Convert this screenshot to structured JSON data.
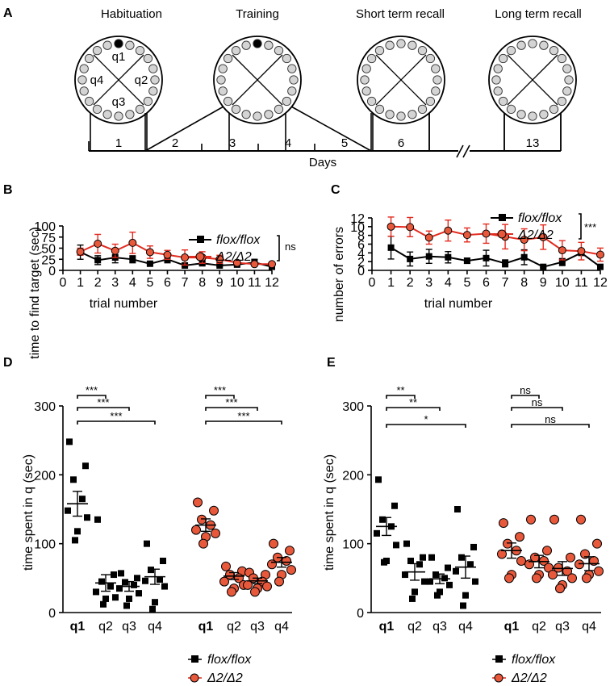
{
  "panels": {
    "A": {
      "label": "A",
      "phases": [
        "Habituation",
        "Training",
        "Short term recall",
        "Long term recall"
      ],
      "quadrants": [
        "q1",
        "q2",
        "q3",
        "q4"
      ],
      "days": [
        "1",
        "2",
        "3",
        "4",
        "5",
        "6",
        "13"
      ],
      "days_label": "Days"
    },
    "B": {
      "label": "B"
    },
    "C": {
      "label": "C"
    },
    "D": {
      "label": "D"
    },
    "E": {
      "label": "E"
    }
  },
  "chart_data": [
    {
      "id": "B",
      "type": "line",
      "xlabel": "trial number",
      "ylabel": "time to find target (sec)",
      "xlim": [
        0,
        12
      ],
      "ylim": [
        0,
        100
      ],
      "xticks": [
        0,
        1,
        2,
        3,
        4,
        5,
        6,
        7,
        8,
        9,
        10,
        11,
        12
      ],
      "yticks": [
        0,
        25,
        50,
        75,
        100
      ],
      "legend_position": "top-right",
      "significance": "ns",
      "series": [
        {
          "name": "flox/flox",
          "color": "#000000",
          "marker": "square",
          "x": [
            1,
            2,
            3,
            4,
            5,
            6,
            7,
            8,
            9,
            10,
            11,
            12
          ],
          "y": [
            41,
            23,
            29,
            25,
            15,
            25,
            11,
            16,
            11,
            13,
            18,
            8
          ],
          "err": [
            16,
            10,
            12,
            8,
            2,
            8,
            2,
            5,
            2,
            3,
            7,
            3
          ]
        },
        {
          "name": "Δ2/Δ2",
          "color": "#e32b1f",
          "marker": "circle",
          "x": [
            1,
            2,
            3,
            4,
            5,
            6,
            7,
            8,
            9,
            10,
            11,
            12
          ],
          "y": [
            42,
            60,
            44,
            62,
            41,
            35,
            29,
            29,
            25,
            17,
            14,
            14
          ],
          "err": [
            8,
            21,
            15,
            24,
            14,
            10,
            17,
            13,
            9,
            5,
            4,
            4
          ]
        }
      ]
    },
    {
      "id": "C",
      "type": "line",
      "xlabel": "trial number",
      "ylabel": "number of errors",
      "xlim": [
        0,
        12
      ],
      "ylim": [
        0,
        12
      ],
      "xticks": [
        0,
        1,
        2,
        3,
        4,
        5,
        6,
        7,
        8,
        9,
        10,
        11,
        12
      ],
      "yticks": [
        0,
        2,
        4,
        6,
        8,
        10,
        12
      ],
      "legend_position": "top-right",
      "significance": "***",
      "series": [
        {
          "name": "flox/flox",
          "color": "#000000",
          "marker": "square",
          "x": [
            1,
            2,
            3,
            4,
            5,
            6,
            7,
            8,
            9,
            10,
            11,
            12
          ],
          "y": [
            5.2,
            2.6,
            3.2,
            3.0,
            2.2,
            2.8,
            1.6,
            3.0,
            0.8,
            1.9,
            4.0,
            0.8
          ],
          "err": [
            2.6,
            1.6,
            1.6,
            1.3,
            0.6,
            1.8,
            0.8,
            1.7,
            0.2,
            0.8,
            0.5,
            0.3
          ]
        },
        {
          "name": "Δ2/Δ2",
          "color": "#e32b1f",
          "marker": "circle",
          "x": [
            1,
            2,
            3,
            4,
            5,
            6,
            7,
            8,
            9,
            10,
            11,
            12
          ],
          "y": [
            10.0,
            9.9,
            7.5,
            9.1,
            8.1,
            8.4,
            7.7,
            7.0,
            7.6,
            4.6,
            4.4,
            3.6
          ],
          "err": [
            2.2,
            2.2,
            1.5,
            2.4,
            1.6,
            2.2,
            2.8,
            2.5,
            2.8,
            2.2,
            2.0,
            1.5
          ]
        }
      ]
    },
    {
      "id": "D",
      "type": "scatter",
      "ylabel": "time spent in q (sec)",
      "ylim": [
        0,
        300
      ],
      "yticks": [
        0,
        100,
        200,
        300
      ],
      "legend_position": "bottom-right",
      "groups": [
        {
          "name": "flox/flox",
          "color": "#000000",
          "marker": "square",
          "categories": [
            "q1",
            "q2",
            "q3",
            "q4"
          ],
          "means": [
            158,
            43,
            38,
            52
          ],
          "sem": [
            18,
            12,
            7,
            11
          ],
          "points": [
            [
              248,
              213,
              193,
              165,
              148,
              138,
              118,
              105
            ],
            [
              135,
              55,
              45,
              38,
              30,
              22,
              20,
              12
            ],
            [
              57,
              50,
              44,
              40,
              35,
              28,
              20,
              10
            ],
            [
              100,
              75,
              62,
              48,
              46,
              38,
              15,
              5
            ]
          ],
          "comparisons": [
            [
              "q1",
              "q2",
              "***"
            ],
            [
              "q1",
              "q3",
              "***"
            ],
            [
              "q1",
              "q4",
              "***"
            ]
          ]
        },
        {
          "name": "Δ2/Δ2",
          "color": "#e8593c",
          "marker": "circle",
          "categories": [
            "q1",
            "q2",
            "q3",
            "q4"
          ],
          "means": [
            127,
            53,
            46,
            73
          ],
          "sem": [
            9,
            5,
            4,
            7
          ],
          "points": [
            [
              160,
              148,
              135,
              127,
              120,
              115,
              110,
              100
            ],
            [
              67,
              60,
              55,
              50,
              45,
              40,
              35,
              30
            ],
            [
              58,
              55,
              50,
              45,
              40,
              38,
              35,
              30
            ],
            [
              100,
              90,
              80,
              75,
              70,
              62,
              55,
              45
            ]
          ],
          "comparisons": [
            [
              "q1",
              "q2",
              "***"
            ],
            [
              "q1",
              "q3",
              "***"
            ],
            [
              "q1",
              "q4",
              "***"
            ]
          ]
        }
      ]
    },
    {
      "id": "E",
      "type": "scatter",
      "ylabel": "time spent in q (sec)",
      "ylim": [
        0,
        300
      ],
      "yticks": [
        0,
        100,
        200,
        300
      ],
      "legend_position": "bottom-right",
      "groups": [
        {
          "name": "flox/flox",
          "color": "#000000",
          "marker": "square",
          "categories": [
            "q1",
            "q2",
            "q3",
            "q4"
          ],
          "means": [
            125,
            59,
            49,
            66
          ],
          "sem": [
            13,
            12,
            7,
            16
          ],
          "points": [
            [
              193,
              155,
              135,
              125,
              115,
              98,
              75,
              73
            ],
            [
              100,
              80,
              75,
              70,
              55,
              45,
              30,
              20
            ],
            [
              80,
              65,
              55,
              50,
              45,
              40,
              30,
              25
            ],
            [
              150,
              95,
              80,
              70,
              60,
              45,
              25,
              10
            ]
          ],
          "comparisons": [
            [
              "q1",
              "q2",
              "**"
            ],
            [
              "q1",
              "q3",
              "**"
            ],
            [
              "q1",
              "q4",
              "*"
            ]
          ]
        },
        {
          "name": "Δ2/Δ2",
          "color": "#e8593c",
          "marker": "circle",
          "categories": [
            "q1",
            "q2",
            "q3",
            "q4"
          ],
          "means": [
            90,
            74,
            64,
            71
          ],
          "sem": [
            11,
            9,
            10,
            10
          ],
          "points": [
            [
              130,
              110,
              100,
              90,
              85,
              75,
              55,
              50
            ],
            [
              135,
              90,
              80,
              75,
              70,
              65,
              55,
              50
            ],
            [
              135,
              80,
              65,
              60,
              55,
              50,
              40,
              35
            ],
            [
              135,
              100,
              85,
              75,
              70,
              60,
              55,
              50
            ]
          ],
          "comparisons": [
            [
              "q1",
              "q2",
              "ns"
            ],
            [
              "q1",
              "q3",
              "ns"
            ],
            [
              "q1",
              "q4",
              "ns"
            ]
          ]
        }
      ]
    }
  ]
}
